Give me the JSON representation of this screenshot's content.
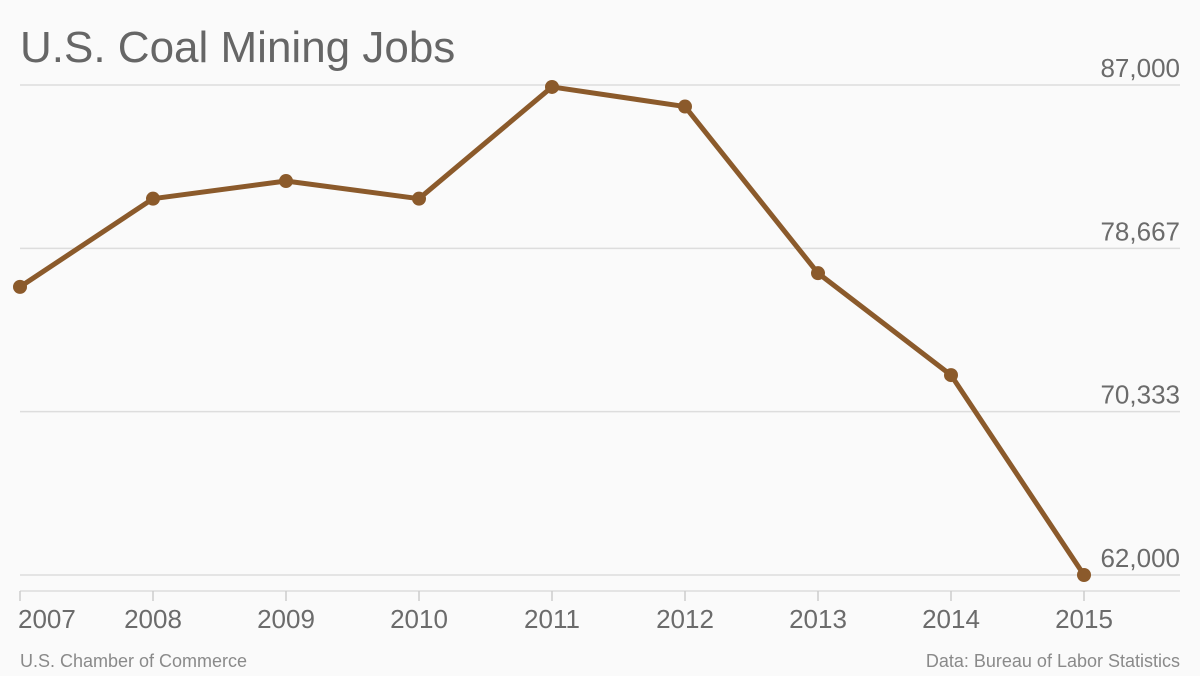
{
  "chart_data": {
    "type": "line",
    "title": "U.S. Coal Mining Jobs",
    "xlabel": "",
    "ylabel": "",
    "categories": [
      "2007",
      "2008",
      "2009",
      "2010",
      "2011",
      "2012",
      "2013",
      "2014",
      "2015"
    ],
    "series": [
      {
        "values": [
          76700,
          81200,
          82100,
          81200,
          86900,
          85900,
          77400,
          72200,
          62000
        ]
      }
    ],
    "y_ticks": [
      62000,
      70333,
      78667,
      87000
    ],
    "y_tick_labels": [
      "62,000",
      "70,333",
      "78,667",
      "87,000"
    ],
    "ylim": [
      62000,
      87000
    ],
    "y_axis_position": "right",
    "grid": true,
    "legend": "none"
  },
  "colors": {
    "line": "#8b5a2b",
    "grid": "#dddddd",
    "background": "#fafafa",
    "text": "#6b6b6b"
  },
  "footer": {
    "source_left": "U.S. Chamber of Commerce",
    "source_right": "Data: Bureau of Labor Statistics"
  }
}
